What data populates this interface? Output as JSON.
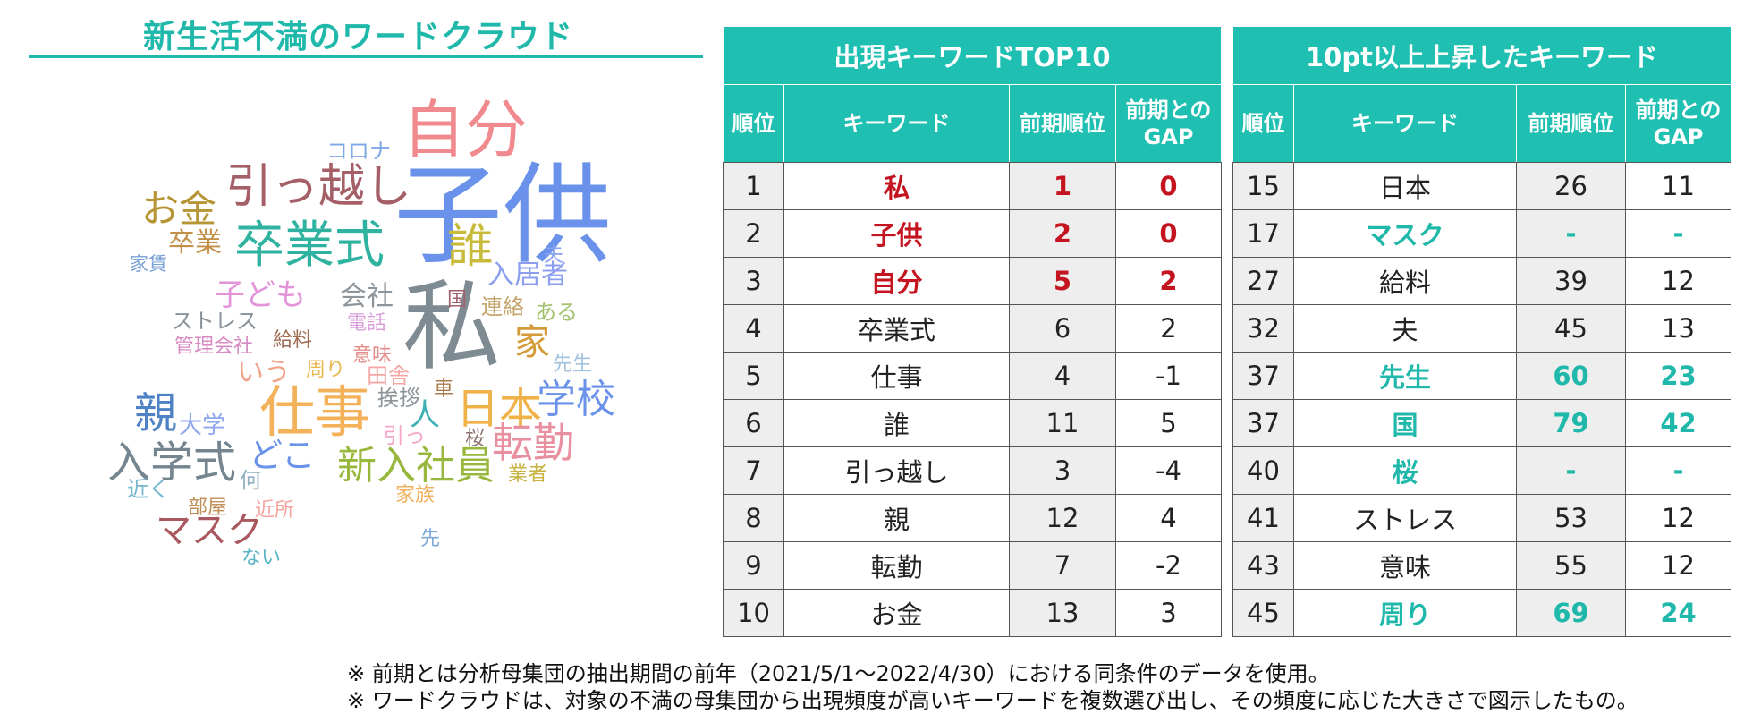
{
  "cloud_title": "新生活不満のワードクラウド",
  "word_cloud": [
    {
      "text": "子供",
      "color": "#6a92ea"
    },
    {
      "text": "私",
      "color": "#7f8b93"
    },
    {
      "text": "自分",
      "color": "#f08a8e"
    },
    {
      "text": "引っ越し",
      "color": "#a45f67"
    },
    {
      "text": "卒業式",
      "color": "#2fb3a0"
    },
    {
      "text": "仕事",
      "color": "#f3b15a"
    },
    {
      "text": "誰",
      "color": "#c9bb3a"
    },
    {
      "text": "お金",
      "color": "#b59535"
    },
    {
      "text": "入学式",
      "color": "#748590"
    },
    {
      "text": "新入社員",
      "color": "#98b73d"
    },
    {
      "text": "日本",
      "color": "#f0b248"
    },
    {
      "text": "学校",
      "color": "#6a92ea"
    },
    {
      "text": "転勤",
      "color": "#e890a0"
    },
    {
      "text": "親",
      "color": "#4f82c5"
    },
    {
      "text": "マスク",
      "color": "#a9585f"
    },
    {
      "text": "家",
      "color": "#d59a38"
    },
    {
      "text": "子ども",
      "color": "#e394d8"
    },
    {
      "text": "会社",
      "color": "#8b959b"
    },
    {
      "text": "入居者",
      "color": "#8b9ef0"
    },
    {
      "text": "卒業",
      "color": "#c29048"
    },
    {
      "text": "どこ",
      "color": "#6a92ea"
    },
    {
      "text": "いう",
      "color": "#f0a48a"
    },
    {
      "text": "人",
      "color": "#3fb0b3"
    },
    {
      "text": "コロナ",
      "color": "#7ea7e6"
    },
    {
      "text": "夫",
      "color": "#84a2f1"
    },
    {
      "text": "ある",
      "color": "#a2c26d"
    },
    {
      "text": "連絡",
      "color": "#c4a56b"
    },
    {
      "text": "国",
      "color": "#a0606b"
    },
    {
      "text": "ストレス",
      "color": "#8a9299"
    },
    {
      "text": "家賃",
      "color": "#78a0d5"
    },
    {
      "text": "電話",
      "color": "#d8a0d9"
    },
    {
      "text": "管理会社",
      "color": "#d68ac2"
    },
    {
      "text": "給料",
      "color": "#a06a52"
    },
    {
      "text": "周り",
      "color": "#e9b84e"
    },
    {
      "text": "意味",
      "color": "#e58c88"
    },
    {
      "text": "田舎",
      "color": "#f4a7a4"
    },
    {
      "text": "先生",
      "color": "#a3c2dd"
    },
    {
      "text": "挨拶",
      "color": "#8d9499"
    },
    {
      "text": "車",
      "color": "#a97a48"
    },
    {
      "text": "大学",
      "color": "#8fa7ee"
    },
    {
      "text": "引っ",
      "color": "#f4a7c8"
    },
    {
      "text": "桜",
      "color": "#8e7470"
    },
    {
      "text": "業者",
      "color": "#c7b242"
    },
    {
      "text": "家族",
      "color": "#f0b05e"
    },
    {
      "text": "何",
      "color": "#8fb1c1"
    },
    {
      "text": "近く",
      "color": "#76b7cf"
    },
    {
      "text": "部屋",
      "color": "#c08f57"
    },
    {
      "text": "近所",
      "color": "#f6a4a0"
    },
    {
      "text": "先",
      "color": "#7fa8d8"
    },
    {
      "text": "ない",
      "color": "#59b5c4"
    }
  ],
  "top10": {
    "caption": "出現キーワードTOP10",
    "headers": {
      "rank": "順位",
      "keyword": "キーワード",
      "prev": "前期順位",
      "gap_line1": "前期との",
      "gap_line2": "GAP"
    },
    "rows": [
      {
        "rank": "1",
        "keyword": "私",
        "prev": "1",
        "gap": "0",
        "highlight": "red"
      },
      {
        "rank": "2",
        "keyword": "子供",
        "prev": "2",
        "gap": "0",
        "highlight": "red"
      },
      {
        "rank": "3",
        "keyword": "自分",
        "prev": "5",
        "gap": "2",
        "highlight": "red"
      },
      {
        "rank": "4",
        "keyword": "卒業式",
        "prev": "6",
        "gap": "2",
        "highlight": ""
      },
      {
        "rank": "5",
        "keyword": "仕事",
        "prev": "4",
        "gap": "-1",
        "highlight": ""
      },
      {
        "rank": "6",
        "keyword": "誰",
        "prev": "11",
        "gap": "5",
        "highlight": ""
      },
      {
        "rank": "7",
        "keyword": "引っ越し",
        "prev": "3",
        "gap": "-4",
        "highlight": ""
      },
      {
        "rank": "8",
        "keyword": "親",
        "prev": "12",
        "gap": "4",
        "highlight": ""
      },
      {
        "rank": "9",
        "keyword": "転勤",
        "prev": "7",
        "gap": "-2",
        "highlight": ""
      },
      {
        "rank": "10",
        "keyword": "お金",
        "prev": "13",
        "gap": "3",
        "highlight": ""
      }
    ]
  },
  "rising": {
    "caption": "10pt以上上昇したキーワード",
    "headers": {
      "rank": "順位",
      "keyword": "キーワード",
      "prev": "前期順位",
      "gap_line1": "前期との",
      "gap_line2": "GAP"
    },
    "rows": [
      {
        "rank": "15",
        "keyword": "日本",
        "prev": "26",
        "gap": "11",
        "highlight": ""
      },
      {
        "rank": "17",
        "keyword": "マスク",
        "prev": "-",
        "gap": "-",
        "highlight": "teal"
      },
      {
        "rank": "27",
        "keyword": "給料",
        "prev": "39",
        "gap": "12",
        "highlight": ""
      },
      {
        "rank": "32",
        "keyword": "夫",
        "prev": "45",
        "gap": "13",
        "highlight": ""
      },
      {
        "rank": "37",
        "keyword": "先生",
        "prev": "60",
        "gap": "23",
        "highlight": "teal"
      },
      {
        "rank": "37",
        "keyword": "国",
        "prev": "79",
        "gap": "42",
        "highlight": "teal"
      },
      {
        "rank": "40",
        "keyword": "桜",
        "prev": "-",
        "gap": "-",
        "highlight": "teal"
      },
      {
        "rank": "41",
        "keyword": "ストレス",
        "prev": "53",
        "gap": "12",
        "highlight": ""
      },
      {
        "rank": "43",
        "keyword": "意味",
        "prev": "55",
        "gap": "12",
        "highlight": ""
      },
      {
        "rank": "45",
        "keyword": "周り",
        "prev": "69",
        "gap": "24",
        "highlight": "teal"
      }
    ]
  },
  "notes": [
    "※ 前期とは分析母集団の抽出期間の前年（2021/5/1～2022/4/30）における同条件のデータを使用。",
    "※ ワードクラウドは、対象の不満の母集団から出現頻度が高いキーワードを複数選び出し、その頻度に応じた大きさで図示したもの。"
  ],
  "colors": {
    "accent": "#1fbfb1",
    "highlight_red": "#c4141f",
    "highlight_teal": "#1fb8aa",
    "cell_gray": "#eeeeee"
  }
}
